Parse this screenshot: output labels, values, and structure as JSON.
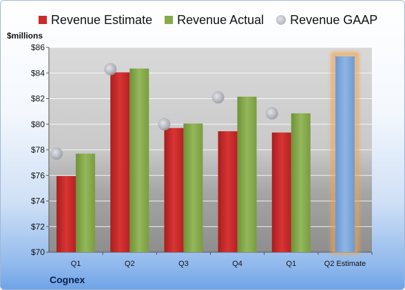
{
  "chart_data": {
    "type": "bar",
    "ylabel": "$millions",
    "ylim": [
      70,
      86
    ],
    "yticks": [
      "$70",
      "$72",
      "$74",
      "$76",
      "$78",
      "$80",
      "$82",
      "$84",
      "$86"
    ],
    "ytick_values": [
      70,
      72,
      74,
      76,
      78,
      80,
      82,
      84,
      86
    ],
    "categories": [
      "Q1",
      "Q2",
      "Q3",
      "Q4",
      "Q1",
      "Q2 Estimate"
    ],
    "series": [
      {
        "name": "Revenue Estimate",
        "color": "#cc2a2a",
        "values": [
          75.95,
          84.05,
          79.7,
          79.45,
          79.35,
          null
        ]
      },
      {
        "name": "Revenue Actual",
        "color": "#86a94a",
        "values": [
          77.7,
          84.35,
          80.05,
          82.15,
          80.85,
          null
        ]
      },
      {
        "name": "Revenue GAAP",
        "color": "#b9bcc4",
        "marker": "circle",
        "values": [
          77.7,
          84.3,
          80.0,
          82.1,
          80.85,
          null
        ]
      }
    ],
    "estimate_bar": {
      "category": "Q2 Estimate",
      "value": 85.3,
      "color": "#7aa6da",
      "glow": "#f3a24a"
    },
    "grid": true,
    "legend_position": "top"
  },
  "footer": {
    "company": "Cognex"
  }
}
